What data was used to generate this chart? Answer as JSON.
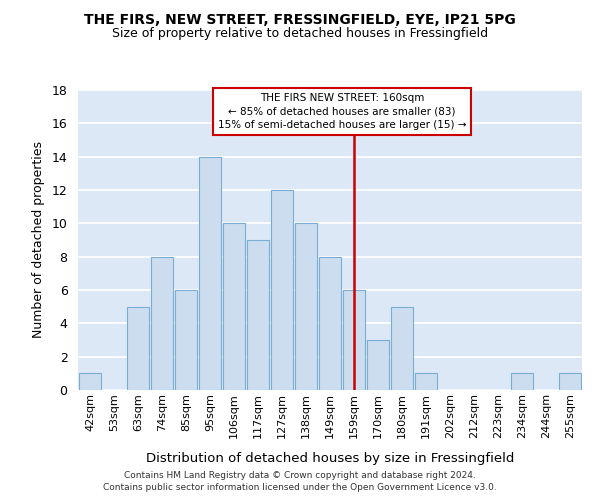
{
  "title": "THE FIRS, NEW STREET, FRESSINGFIELD, EYE, IP21 5PG",
  "subtitle": "Size of property relative to detached houses in Fressingfield",
  "xlabel": "Distribution of detached houses by size in Fressingfield",
  "ylabel": "Number of detached properties",
  "categories": [
    "42sqm",
    "53sqm",
    "63sqm",
    "74sqm",
    "85sqm",
    "95sqm",
    "106sqm",
    "117sqm",
    "127sqm",
    "138sqm",
    "149sqm",
    "159sqm",
    "170sqm",
    "180sqm",
    "191sqm",
    "202sqm",
    "212sqm",
    "223sqm",
    "234sqm",
    "244sqm",
    "255sqm"
  ],
  "values": [
    1,
    0,
    5,
    8,
    6,
    14,
    10,
    9,
    12,
    10,
    8,
    6,
    3,
    5,
    1,
    0,
    0,
    0,
    1,
    0,
    1
  ],
  "bar_color": "#ccddf0",
  "bar_edge_color": "#7aadd4",
  "vline_x_index": 11,
  "vline_color": "#cc0000",
  "annotation_title": "THE FIRS NEW STREET: 160sqm",
  "annotation_line1": "← 85% of detached houses are smaller (83)",
  "annotation_line2": "15% of semi-detached houses are larger (15) →",
  "annotation_box_color": "#cc0000",
  "ylim": [
    0,
    18
  ],
  "yticks": [
    0,
    2,
    4,
    6,
    8,
    10,
    12,
    14,
    16,
    18
  ],
  "background_color": "#dce8f5",
  "grid_color": "#ffffff",
  "footer_line1": "Contains HM Land Registry data © Crown copyright and database right 2024.",
  "footer_line2": "Contains public sector information licensed under the Open Government Licence v3.0."
}
